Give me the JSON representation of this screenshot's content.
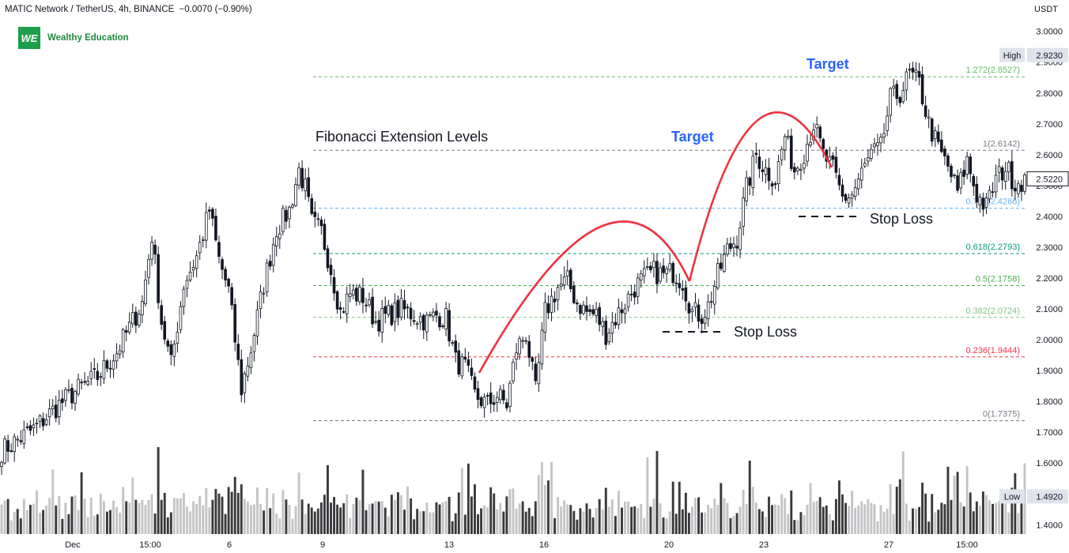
{
  "header": {
    "symbol": "MATIC Network / TetherUS, 4h, BINANCE",
    "change": "−0.0070 (−0.90%)"
  },
  "brand": {
    "logo_text": "WE",
    "name": "Wealthy Education",
    "logo_color": "#1e9e4a"
  },
  "currency": "USDT",
  "chart_data": {
    "type": "candlestick",
    "y_range": [
      1.37,
      3.03
    ],
    "y_ticks": [
      "3.0000",
      "2.9000",
      "2.8000",
      "2.7000",
      "2.6000",
      "2.5000",
      "2.4000",
      "2.3000",
      "2.2000",
      "2.1000",
      "2.0000",
      "1.9000",
      "1.8000",
      "1.7000",
      "1.6000",
      "1.5000",
      "1.4000"
    ],
    "x_labels": [
      "Dec",
      "15:00",
      "6",
      "9",
      "13",
      "16",
      "20",
      "23",
      "27",
      "15:00"
    ],
    "price_badges": {
      "high": {
        "label": "High",
        "value": "2.9230"
      },
      "last": {
        "value": "2.5220"
      },
      "low": {
        "label": "Low",
        "value": "1.4920"
      }
    },
    "fib_levels": [
      {
        "label": "1.272(2.8527)",
        "price": 2.8527,
        "color": "#66bb6a"
      },
      {
        "label": "1(2.6142)",
        "price": 2.6142,
        "color": "#787b86"
      },
      {
        "label": "0.786(2.4266)",
        "price": 2.4266,
        "color": "#64b5f6"
      },
      {
        "label": "0.618(2.2793)",
        "price": 2.2793,
        "color": "#089981"
      },
      {
        "label": "0.5(2.1758)",
        "price": 2.1758,
        "color": "#4caf50"
      },
      {
        "label": "0.382(2.0724)",
        "price": 2.0724,
        "color": "#81c784"
      },
      {
        "label": "0.236(1.9444)",
        "price": 1.9444,
        "color": "#f23645"
      },
      {
        "label": "0(1.7375)",
        "price": 1.7375,
        "color": "#787b86"
      }
    ],
    "annotations": {
      "fib_title": "Fibonacci Extension Levels",
      "target_1": "Target",
      "target_2": "Target",
      "stop_loss_1": "Stop Loss",
      "stop_loss_2": "Stop Loss"
    },
    "colors": {
      "up": "#ffffff",
      "down": "#131722",
      "wick": "#131722",
      "volume_up": "#c4c4c7",
      "volume_down": "#3a3a3d",
      "target": "#2962ff",
      "arc": "#ef3340"
    },
    "close_path": [
      [
        0,
        1.64
      ],
      [
        10,
        1.71
      ],
      [
        18,
        1.79
      ],
      [
        24,
        1.84
      ],
      [
        30,
        1.88
      ],
      [
        36,
        1.96
      ],
      [
        40,
        2.04
      ],
      [
        44,
        2.12
      ],
      [
        47,
        2.34
      ],
      [
        50,
        2.06
      ],
      [
        53,
        1.92
      ],
      [
        57,
        2.18
      ],
      [
        61,
        2.27
      ],
      [
        65,
        2.42
      ],
      [
        68,
        2.26
      ],
      [
        71,
        2.16
      ],
      [
        75,
        1.84
      ],
      [
        78,
        1.97
      ],
      [
        82,
        2.18
      ],
      [
        86,
        2.36
      ],
      [
        90,
        2.42
      ],
      [
        93,
        2.55
      ],
      [
        95,
        2.49
      ],
      [
        97,
        2.38
      ],
      [
        100,
        2.35
      ],
      [
        103,
        2.23
      ],
      [
        106,
        2.09
      ],
      [
        109,
        2.15
      ],
      [
        113,
        2.14
      ],
      [
        117,
        2.06
      ],
      [
        121,
        2.08
      ],
      [
        125,
        2.1
      ],
      [
        129,
        2.08
      ],
      [
        133,
        2.06
      ],
      [
        136,
        2.08
      ],
      [
        139,
        2.07
      ],
      [
        142,
        1.93
      ],
      [
        145,
        1.91
      ],
      [
        148,
        1.82
      ],
      [
        152,
        1.79
      ],
      [
        155,
        1.82
      ],
      [
        158,
        1.79
      ],
      [
        161,
        1.97
      ],
      [
        164,
        2.02
      ],
      [
        167,
        1.83
      ],
      [
        170,
        2.09
      ],
      [
        174,
        2.17
      ],
      [
        177,
        2.19
      ],
      [
        180,
        2.12
      ],
      [
        183,
        2.09
      ],
      [
        186,
        2.08
      ],
      [
        189,
        2.02
      ],
      [
        192,
        2.07
      ],
      [
        195,
        2.12
      ],
      [
        198,
        2.17
      ],
      [
        201,
        2.2
      ],
      [
        204,
        2.22
      ],
      [
        207,
        2.21
      ],
      [
        210,
        2.22
      ],
      [
        213,
        2.19
      ],
      [
        216,
        2.09
      ],
      [
        219,
        2.08
      ],
      [
        221,
        2.11
      ],
      [
        224,
        2.21
      ],
      [
        227,
        2.29
      ],
      [
        230,
        2.33
      ],
      [
        233,
        2.49
      ],
      [
        236,
        2.6
      ],
      [
        239,
        2.55
      ],
      [
        242,
        2.52
      ],
      [
        245,
        2.66
      ],
      [
        248,
        2.55
      ],
      [
        251,
        2.61
      ],
      [
        254,
        2.7
      ],
      [
        257,
        2.6
      ],
      [
        260,
        2.55
      ],
      [
        263,
        2.46
      ],
      [
        266,
        2.47
      ],
      [
        269,
        2.54
      ],
      [
        272,
        2.6
      ],
      [
        275,
        2.62
      ],
      [
        278,
        2.78
      ],
      [
        281,
        2.8
      ],
      [
        284,
        2.86
      ],
      [
        287,
        2.83
      ],
      [
        290,
        2.7
      ],
      [
        293,
        2.62
      ],
      [
        296,
        2.56
      ],
      [
        299,
        2.48
      ],
      [
        302,
        2.58
      ],
      [
        305,
        2.47
      ],
      [
        308,
        2.43
      ],
      [
        311,
        2.52
      ],
      [
        314,
        2.56
      ],
      [
        317,
        2.51
      ],
      [
        320,
        2.52
      ]
    ]
  }
}
